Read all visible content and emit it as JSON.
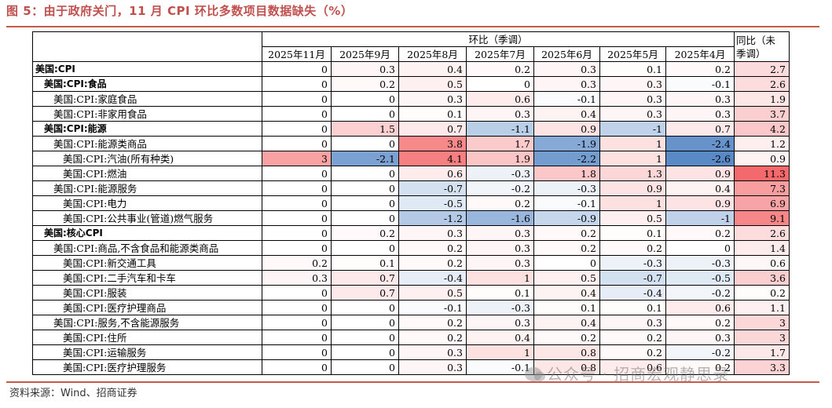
{
  "title": "图 5：由于政府关门，11 月 CPI 环比多数项目数据缺失（%）",
  "source": "资料来源：Wind、招商证券",
  "watermark": "公众号 · 招商宏观静思录",
  "colors": {
    "accent": "#c0504d",
    "pos_max": "#f4696b",
    "neg_max": "#5a8ac6",
    "neutral": "#ffffff"
  },
  "table": {
    "group_header": "环比（季调）",
    "yoy_header_line1": "同比（未",
    "yoy_header_line2": "季调）",
    "months": [
      "2025年11月",
      "2025年9月",
      "2025年8月",
      "2025年7月",
      "2025年6月",
      "2025年5月",
      "2025年4月"
    ],
    "rows": [
      {
        "label": "美国:CPI",
        "level": 0,
        "bold": true,
        "mom": [
          "0",
          "0.3",
          "0.4",
          "0.2",
          "0.3",
          "0.1",
          "0.2"
        ],
        "yoy": "2.7"
      },
      {
        "label": "美国:CPI:食品",
        "level": 1,
        "bold": true,
        "mom": [
          "0",
          "0.2",
          "0.5",
          "0",
          "0.3",
          "0.3",
          "-0.1"
        ],
        "yoy": "2.6"
      },
      {
        "label": "美国:CPI:家庭食品",
        "level": 2,
        "bold": false,
        "mom": [
          "0",
          "0",
          "0.3",
          "0.6",
          "-0.1",
          "0.3",
          "0.3"
        ],
        "yoy": "1.9"
      },
      {
        "label": "美国:CPI:非家用食品",
        "level": 2,
        "bold": false,
        "mom": [
          "0",
          "0",
          "0.1",
          "0.3",
          "0.4",
          "0.3",
          "0.3"
        ],
        "yoy": "3.7"
      },
      {
        "label": "美国:CPI:能源",
        "level": 1,
        "bold": true,
        "mom": [
          "0",
          "1.5",
          "0.7",
          "-1.1",
          "0.9",
          "-1",
          "0.7"
        ],
        "yoy": "4.2"
      },
      {
        "label": "美国:CPI:能源类商品",
        "level": 2,
        "bold": false,
        "mom": [
          "0",
          "0",
          "3.8",
          "1.7",
          "-1.9",
          "1",
          "-2.4"
        ],
        "yoy": "1.2"
      },
      {
        "label": "美国:CPI:汽油(所有种类)",
        "level": 3,
        "bold": false,
        "mom": [
          "3",
          "-2.1",
          "4.1",
          "1.9",
          "-2.2",
          "1",
          "-2.6"
        ],
        "yoy": "0.9"
      },
      {
        "label": "美国:CPI:燃油",
        "level": 3,
        "bold": false,
        "mom": [
          "0",
          "0",
          "0.6",
          "-0.3",
          "1.8",
          "1.3",
          "0.9"
        ],
        "yoy": "11.3"
      },
      {
        "label": "美国:CPI:能源服务",
        "level": 2,
        "bold": false,
        "mom": [
          "0",
          "0",
          "-0.7",
          "-0.2",
          "-0.3",
          "0.9",
          "0.4"
        ],
        "yoy": "7.3"
      },
      {
        "label": "美国:CPI:电力",
        "level": 3,
        "bold": false,
        "mom": [
          "0",
          "0",
          "-0.5",
          "0.2",
          "-0.1",
          "1",
          "0.9"
        ],
        "yoy": "6.9"
      },
      {
        "label": "美国:CPI:公共事业(管道)燃气服务",
        "level": 3,
        "bold": false,
        "mom": [
          "0",
          "0",
          "-1.2",
          "-1.6",
          "-0.9",
          "0.5",
          "-1"
        ],
        "yoy": "9.1"
      },
      {
        "label": "美国:核心CPI",
        "level": 1,
        "bold": true,
        "mom": [
          "0",
          "0.2",
          "0.3",
          "0.3",
          "0.2",
          "0.1",
          "0.2"
        ],
        "yoy": "2.6"
      },
      {
        "label": "美国:CPI:商品,不含食品和能源类商品",
        "level": 2,
        "bold": false,
        "mom": [
          "0",
          "0",
          "0.2",
          "0.3",
          "0.2",
          "0.2",
          "0"
        ],
        "yoy": "1.4"
      },
      {
        "label": "美国:CPI:新交通工具",
        "level": 3,
        "bold": false,
        "mom": [
          "0.2",
          "0.1",
          "0.2",
          "0.3",
          "0",
          "-0.3",
          "-0.3"
        ],
        "yoy": "0.6"
      },
      {
        "label": "美国:CPI:二手汽车和卡车",
        "level": 3,
        "bold": false,
        "mom": [
          "0.3",
          "0.7",
          "-0.4",
          "1",
          "0.5",
          "-0.7",
          "-0.5"
        ],
        "yoy": "3.6"
      },
      {
        "label": "美国:CPI:服装",
        "level": 3,
        "bold": false,
        "mom": [
          "0",
          "0.7",
          "0.5",
          "0.1",
          "0.4",
          "-0.4",
          "-0.2"
        ],
        "yoy": "0.2"
      },
      {
        "label": "美国:CPI:医疗护理商品",
        "level": 3,
        "bold": false,
        "mom": [
          "0",
          "0",
          "-0.1",
          "-0.3",
          "0.1",
          "0.1",
          "0.6"
        ],
        "yoy": "1.1"
      },
      {
        "label": "美国:CPI:服务,不含能源服务",
        "level": 2,
        "bold": false,
        "mom": [
          "0",
          "0",
          "0.2",
          "0.3",
          "0.4",
          "0.3",
          "0.2"
        ],
        "yoy": "3"
      },
      {
        "label": "美国:CPI:住所",
        "level": 3,
        "bold": false,
        "mom": [
          "0",
          "0",
          "0.2",
          "0.4",
          "0.2",
          "0.2",
          "0.3"
        ],
        "yoy": "3"
      },
      {
        "label": "美国:CPI:运输服务",
        "level": 3,
        "bold": false,
        "mom": [
          "0",
          "0",
          "0.3",
          "1",
          "0.8",
          "0.2",
          "-0.2"
        ],
        "yoy": "1.7"
      },
      {
        "label": "美国:CPI:医疗护理服务",
        "level": 3,
        "bold": false,
        "mom": [
          "0",
          "0",
          "0.3",
          "-0.1",
          "0.8",
          "0.6",
          "0.2"
        ],
        "yoy": "3.3"
      }
    ]
  }
}
